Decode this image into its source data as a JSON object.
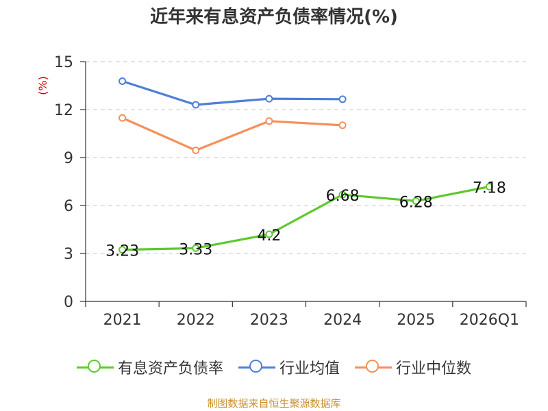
{
  "chart_data": {
    "type": "line",
    "title": "近年来有息资产负债率情况(%)",
    "ylabel": "(%)",
    "xlabel": "",
    "categories": [
      "2021",
      "2022",
      "2023",
      "2024",
      "2025",
      "2026Q1"
    ],
    "ylim": [
      0,
      15
    ],
    "yticks": [
      0,
      3,
      6,
      9,
      12,
      15
    ],
    "grid": true,
    "legend_position": "bottom",
    "series": [
      {
        "name": "有息资产负债率",
        "color": "#5cc92c",
        "labels": true,
        "values": [
          3.23,
          3.33,
          4.2,
          6.68,
          6.28,
          7.18
        ],
        "value_labels": [
          "3.23",
          "3.33",
          "4.2",
          "6.68",
          "6.28",
          "7.18"
        ]
      },
      {
        "name": "行业均值",
        "color": "#4e7fd8",
        "labels": false,
        "values": [
          13.78,
          12.3,
          12.68,
          12.65,
          null,
          null
        ]
      },
      {
        "name": "行业中位数",
        "color": "#f4905a",
        "labels": false,
        "values": [
          11.48,
          9.45,
          11.28,
          11.02,
          null,
          null
        ]
      }
    ]
  },
  "source": "制图数据来自恒生聚源数据库"
}
